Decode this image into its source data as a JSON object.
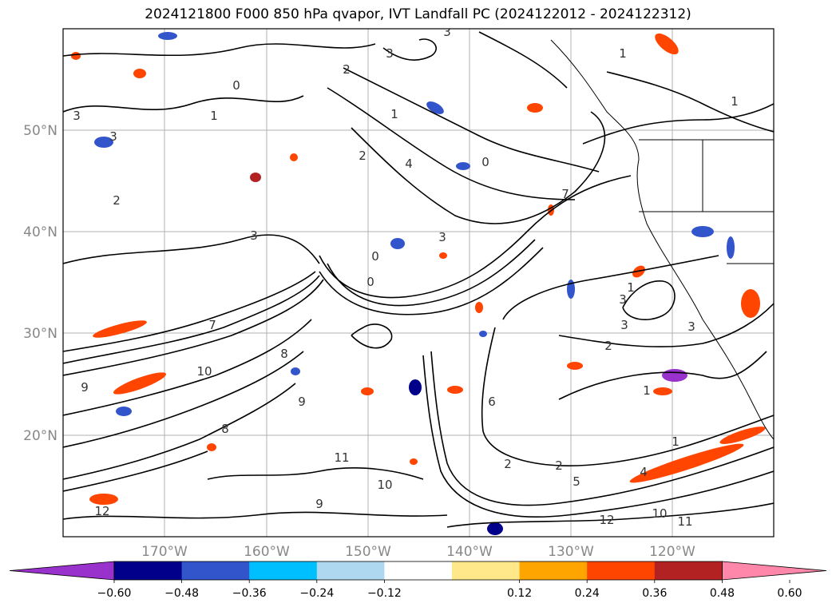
{
  "title": "2024121800 F000 850 hPa qvapor, IVT Landfall PC (2024122012 - 2024122312)",
  "map": {
    "lat_ticks": [
      "50°N",
      "40°N",
      "30°N",
      "20°N"
    ],
    "lon_ticks": [
      "170°W",
      "160°W",
      "150°W",
      "140°W",
      "130°W",
      "120°W"
    ],
    "contour_labels": [
      "3",
      "3",
      "2",
      "1",
      "1",
      "0",
      "0",
      "1",
      "3",
      "3",
      "2",
      "3",
      "1",
      "4",
      "2",
      "7",
      "3",
      "1",
      "0",
      "0",
      "3",
      "7",
      "8",
      "10",
      "9",
      "12",
      "11",
      "10",
      "9",
      "12",
      "11",
      "10",
      "9",
      "8",
      "5",
      "4",
      "2",
      "1",
      "2",
      "3",
      "3",
      "2",
      "1",
      "6"
    ],
    "colors": {
      "contour": "#000000",
      "coastline": "#000000",
      "gridline": "#b0b0b0",
      "frame": "#000000"
    }
  },
  "colorbar": {
    "labels": [
      "−0.60",
      "−0.48",
      "−0.36",
      "−0.24",
      "−0.12",
      "0.12",
      "0.24",
      "0.36",
      "0.48",
      "0.60"
    ],
    "colors": [
      "#9932cc",
      "#00008b",
      "#3355cc",
      "#00bfff",
      "#add8f0",
      "#ffffff",
      "#ffe88a",
      "#ffa500",
      "#ff4500",
      "#b22222",
      "#ff88aa"
    ]
  }
}
